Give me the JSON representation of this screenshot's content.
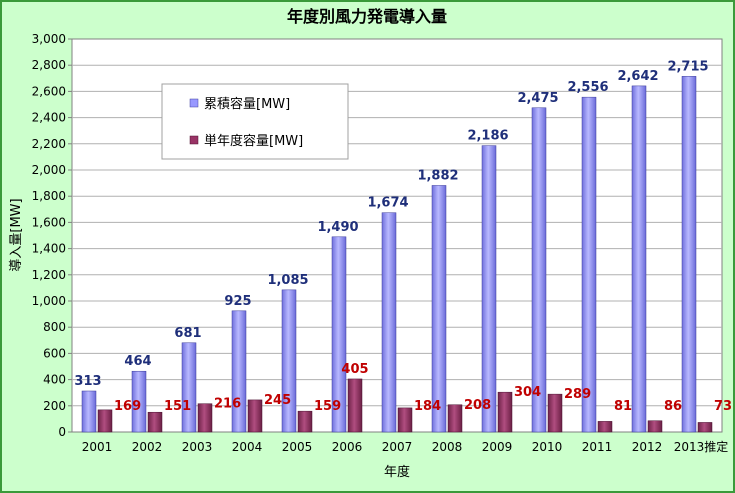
{
  "chart_data": {
    "type": "bar",
    "title": "年度別風力発電導入量",
    "xlabel": "年度",
    "ylabel": "導入量[MW]",
    "ylim": [
      0,
      3000
    ],
    "yticks": [
      "0",
      "200",
      "400",
      "600",
      "800",
      "1,000",
      "1,200",
      "1,400",
      "1,600",
      "1,800",
      "2,000",
      "2,200",
      "2,400",
      "2,600",
      "2,800",
      "3,000"
    ],
    "ytick_values": [
      0,
      200,
      400,
      600,
      800,
      1000,
      1200,
      1400,
      1600,
      1800,
      2000,
      2200,
      2400,
      2600,
      2800,
      3000
    ],
    "categories": [
      "2001",
      "2002",
      "2003",
      "2004",
      "2005",
      "2006",
      "2007",
      "2008",
      "2009",
      "2010",
      "2011",
      "2012",
      "2013推定"
    ],
    "grid": true,
    "legend_position": "top-left",
    "series": [
      {
        "name": "累積容量[MW]",
        "color": "#9999ff",
        "label_color": "#1f2f7a",
        "values": [
          313,
          464,
          681,
          925,
          1085,
          1490,
          1674,
          1882,
          2186,
          2475,
          2556,
          2642,
          2715
        ],
        "labels": [
          "313",
          "464",
          "681",
          "925",
          "1,085",
          "1,490",
          "1,674",
          "1,882",
          "2,186",
          "2,475",
          "2,556",
          "2,642",
          "2,715"
        ]
      },
      {
        "name": "単年度容量[MW]",
        "color": "#993366",
        "label_color": "#c00000",
        "values": [
          169,
          151,
          216,
          245,
          159,
          405,
          184,
          208,
          304,
          289,
          81,
          86,
          73
        ],
        "labels": [
          "169",
          "151",
          "216",
          "245",
          "159",
          "405",
          "184",
          "208",
          "304",
          "289",
          "81",
          "86",
          "73"
        ]
      }
    ]
  }
}
